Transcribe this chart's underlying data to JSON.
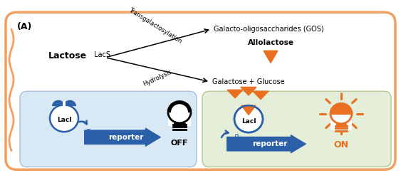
{
  "panel_label": "(A)",
  "outer_border_color": "#F0A060",
  "left_panel_bg": "#D8E8F5",
  "right_panel_bg": "#E5EED8",
  "lactose_text": "Lactose",
  "lacs_text": "LacS",
  "transgalac_text": "Transgalactosylation",
  "hydrolysis_text": "Hydrolysis",
  "gos_text": "Galacto-oligosaccharides (GOS)",
  "allolactose_text": "Allolactose",
  "galactose_text": "Galactose + Glucose",
  "laci_text": "LacI",
  "reporter_text": "reporter",
  "off_text": "OFF",
  "on_text": "ON",
  "orange_color": "#E87020",
  "blue_dark": "#2B5FA8",
  "black": "#1A1A1A",
  "fig_width": 5.63,
  "fig_height": 2.43,
  "dpi": 100
}
